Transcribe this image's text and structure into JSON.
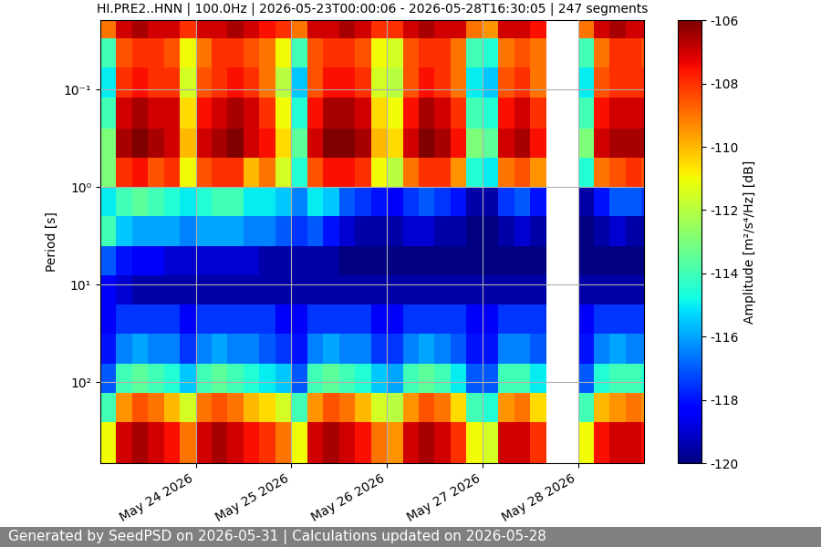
{
  "chart_data": {
    "type": "heatmap",
    "title": "HI.PRE2..HNN | 100.0Hz | 2026-05-23T00:00:06 - 2026-05-28T16:30:05 | 247 segments",
    "y_label": "Period [s]",
    "color": "jet",
    "log": "y",
    "grid": true,
    "x": [
      "2026-05-23T00:00",
      "2026-05-23T04:00",
      "2026-05-23T08:00",
      "2026-05-23T12:00",
      "2026-05-23T16:00",
      "2026-05-23T20:00",
      "2026-05-24T00:00",
      "2026-05-24T04:00",
      "2026-05-24T08:00",
      "2026-05-24T12:00",
      "2026-05-24T16:00",
      "2026-05-24T20:00",
      "2026-05-25T00:00",
      "2026-05-25T04:00",
      "2026-05-25T08:00",
      "2026-05-25T12:00",
      "2026-05-25T16:00",
      "2026-05-25T20:00",
      "2026-05-26T00:00",
      "2026-05-26T04:00",
      "2026-05-26T08:00",
      "2026-05-26T12:00",
      "2026-05-26T16:00",
      "2026-05-26T20:00",
      "2026-05-27T00:00",
      "2026-05-27T04:00",
      "2026-05-27T08:00",
      "2026-05-27T12:00",
      "2026-05-27T16:00",
      "2026-05-27T20:00",
      "2026-05-28T00:00",
      "2026-05-28T04:00",
      "2026-05-28T08:00",
      "2026-05-28T12:00",
      "2026-05-28T16:00",
      "2026-05-28T16:30"
    ],
    "y": [
      0.0195,
      0.03,
      0.06,
      0.12,
      0.25,
      0.5,
      1,
      2,
      4,
      8,
      16,
      32,
      64,
      128,
      256,
      676
    ],
    "cells": [
      [
        -109,
        -107,
        -106.5,
        -107,
        -107,
        -108,
        -107,
        -107,
        -106.5,
        -107,
        -107.5,
        -108,
        -109,
        -107,
        -107,
        -106.5,
        -107,
        -108,
        -108,
        -107,
        -106.5,
        -107,
        -107,
        -109,
        -109.5,
        -107,
        -107,
        -107.5,
        null,
        null,
        -109,
        -107,
        -106.5,
        -107,
        -107
      ],
      [
        -114,
        -108.5,
        -108,
        -108,
        -108.5,
        -111,
        -109,
        -108,
        -108,
        -108.5,
        -109,
        -111,
        -114,
        -108.5,
        -108,
        -108,
        -108.5,
        -111,
        -111.5,
        -108.5,
        -108,
        -108,
        -109,
        -114,
        -114.5,
        -109,
        -108.5,
        -109,
        null,
        null,
        -114,
        -109,
        -108,
        -108,
        -108.5
      ],
      [
        -115,
        -108,
        -107.5,
        -108,
        -108,
        -111.5,
        -108.5,
        -108,
        -107.5,
        -108,
        -109,
        -112,
        -115.5,
        -108.5,
        -107.5,
        -107.5,
        -108,
        -111.5,
        -112,
        -108.5,
        -107.5,
        -108,
        -109,
        -115,
        -115.5,
        -108.5,
        -108,
        -109,
        null,
        null,
        -115,
        -108.5,
        -108,
        -108,
        -108
      ],
      [
        -114,
        -107,
        -106.5,
        -107,
        -107,
        -110.5,
        -107.5,
        -107,
        -106.5,
        -107,
        -108,
        -111,
        -114.5,
        -107.5,
        -106.5,
        -106.5,
        -107,
        -110.5,
        -111,
        -107.5,
        -106.5,
        -107,
        -108,
        -114,
        -114.5,
        -107.5,
        -107,
        -108,
        null,
        null,
        -114,
        -107.5,
        -107,
        -107,
        -107
      ],
      [
        -113,
        -106.5,
        -106,
        -106.5,
        -107,
        -110,
        -107,
        -106.5,
        -106,
        -107,
        -107.5,
        -110.5,
        -113.5,
        -107,
        -106,
        -106,
        -106.5,
        -110,
        -110.5,
        -107,
        -106,
        -106.5,
        -107.5,
        -113,
        -113.5,
        -107,
        -106.5,
        -107.5,
        null,
        null,
        -113,
        -107,
        -106.5,
        -106.5,
        -106.5
      ],
      [
        -113,
        -108,
        -107.5,
        -108.5,
        -108,
        -111,
        -108.5,
        -108,
        -108,
        -110,
        -109,
        -111.5,
        -114.5,
        -108.5,
        -107.5,
        -107.5,
        -108,
        -111,
        -112,
        -109,
        -108,
        -108,
        -109.5,
        -114.5,
        -115,
        -109,
        -108.5,
        -109.5,
        null,
        null,
        -114.5,
        -109,
        -108.5,
        -108,
        -108.5
      ],
      [
        -115,
        -114,
        -113.5,
        -114,
        -114.5,
        -115,
        -114.5,
        -114,
        -114,
        -115,
        -115,
        -115.5,
        -116.5,
        -115,
        -115.5,
        -117,
        -117.5,
        -118,
        -118.5,
        -117.5,
        -117,
        -117.5,
        -118,
        -119.5,
        -119.5,
        -117.5,
        -117,
        -118,
        null,
        null,
        -119.5,
        -118,
        -117,
        -117,
        -117.5
      ],
      [
        -114,
        -115.5,
        -116,
        -116,
        -116,
        -116.5,
        -116,
        -116,
        -116,
        -116.5,
        -116.5,
        -117,
        -117.5,
        -117,
        -118,
        -119,
        -119.5,
        -119.5,
        -119.5,
        -119,
        -119,
        -119.5,
        -119.5,
        -120,
        -120,
        -119.5,
        -119,
        -119.5,
        null,
        null,
        -120,
        -119.5,
        -119,
        -119.5,
        -119.5
      ],
      [
        -117,
        -118,
        -118.5,
        -118.5,
        -119,
        -119,
        -119,
        -119,
        -119,
        -119,
        -119.5,
        -119.5,
        -119.5,
        -119.5,
        -119.5,
        -120,
        -120,
        -120,
        -120,
        -120,
        -120,
        -120,
        -120,
        -120,
        -120,
        -120,
        -120,
        -120,
        null,
        null,
        -120,
        -120,
        -120,
        -120,
        -120
      ],
      [
        -118.5,
        -119,
        -119.5,
        -119.5,
        -119.5,
        -119.5,
        -119.5,
        -119.5,
        -119.5,
        -119.5,
        -119.5,
        -119.5,
        -119.5,
        -119.5,
        -119.5,
        -119.5,
        -119.5,
        -119.5,
        -119.5,
        -119.5,
        -119.5,
        -119.5,
        -119.5,
        -119.5,
        -119.5,
        -119.5,
        -119.5,
        -119.5,
        null,
        null,
        -119.5,
        -119.5,
        -119.5,
        -119.5,
        -119.5
      ],
      [
        -118.5,
        -117.5,
        -117.5,
        -117.5,
        -117.5,
        -118.5,
        -117.5,
        -117.5,
        -117.5,
        -117.5,
        -117.5,
        -118.5,
        -118.5,
        -117.5,
        -117.5,
        -117.5,
        -117.5,
        -118.5,
        -118.5,
        -117.5,
        -117.5,
        -117.5,
        -117.5,
        -118.5,
        -118.5,
        -117.5,
        -117.5,
        -117.5,
        null,
        null,
        -118.5,
        -117.5,
        -117.5,
        -117.5,
        -117.5
      ],
      [
        -118,
        -116.5,
        -116,
        -116.5,
        -116.5,
        -117.5,
        -116.5,
        -116,
        -116.5,
        -116.5,
        -117,
        -117.5,
        -118,
        -116.5,
        -116,
        -116.5,
        -116.5,
        -117.5,
        -117.5,
        -116.5,
        -116,
        -116.5,
        -117,
        -118,
        -118,
        -116.5,
        -116.5,
        -117,
        null,
        null,
        -118,
        -116.5,
        -116,
        -116.5,
        -116.5
      ],
      [
        -117,
        -114,
        -113.5,
        -114,
        -114.5,
        -115.5,
        -114,
        -113.5,
        -114,
        -114.5,
        -115,
        -115.5,
        -117,
        -114,
        -113.5,
        -114,
        -114.5,
        -115.5,
        -116,
        -114,
        -113.5,
        -114,
        -115,
        -117,
        -117,
        -114,
        -114,
        -115,
        null,
        null,
        -117,
        -114.5,
        -114,
        -114,
        -114.5
      ],
      [
        -114,
        -109.5,
        -108.5,
        -109,
        -110,
        -111.5,
        -109,
        -108.5,
        -109,
        -110,
        -110.5,
        -111.5,
        -114,
        -109.5,
        -108.5,
        -109,
        -110,
        -111.5,
        -112,
        -109.5,
        -108.5,
        -109,
        -110.5,
        -114,
        -114.5,
        -109.5,
        -109,
        -110.5,
        null,
        null,
        -114,
        -110,
        -109.5,
        -109,
        -109.5
      ],
      [
        -111,
        -107,
        -106.5,
        -107,
        -107.5,
        -109,
        -107,
        -106.5,
        -107,
        -107.5,
        -108,
        -109,
        -111,
        -107,
        -106.5,
        -107,
        -107.5,
        -109,
        -109.5,
        -107,
        -106.5,
        -107,
        -108,
        -111,
        -111.5,
        -107,
        -107,
        -108,
        null,
        null,
        -111,
        -107.5,
        -107,
        -107,
        -107.5
      ]
    ],
    "xlim": [
      "2026-05-23T00:00:06",
      "2026-05-28T16:30:05"
    ],
    "xticks": [
      {
        "value": "2026-05-24T00:00",
        "label": "May 24 2026"
      },
      {
        "value": "2026-05-25T00:00",
        "label": "May 25 2026"
      },
      {
        "value": "2026-05-26T00:00",
        "label": "May 26 2026"
      },
      {
        "value": "2026-05-27T00:00",
        "label": "May 27 2026"
      },
      {
        "value": "2026-05-28T00:00",
        "label": "May 28 2026"
      }
    ],
    "ylim": [
      676,
      0.0195
    ],
    "yticks": [
      {
        "value": 0.1,
        "label": "10⁻¹"
      },
      {
        "value": 1,
        "label": "10⁰"
      },
      {
        "value": 10,
        "label": "10¹"
      },
      {
        "value": 100,
        "label": "10²"
      }
    ],
    "colorbar": {
      "label": "Amplitude [m²/s⁴/Hz] [dB]",
      "range": [
        -120,
        -106
      ],
      "ticks": [
        -106,
        -108,
        -110,
        -112,
        -114,
        -116,
        -118,
        -120
      ]
    }
  },
  "footer": "Generated by SeedPSD on 2026-05-31 | Calculations updated on 2026-05-28"
}
